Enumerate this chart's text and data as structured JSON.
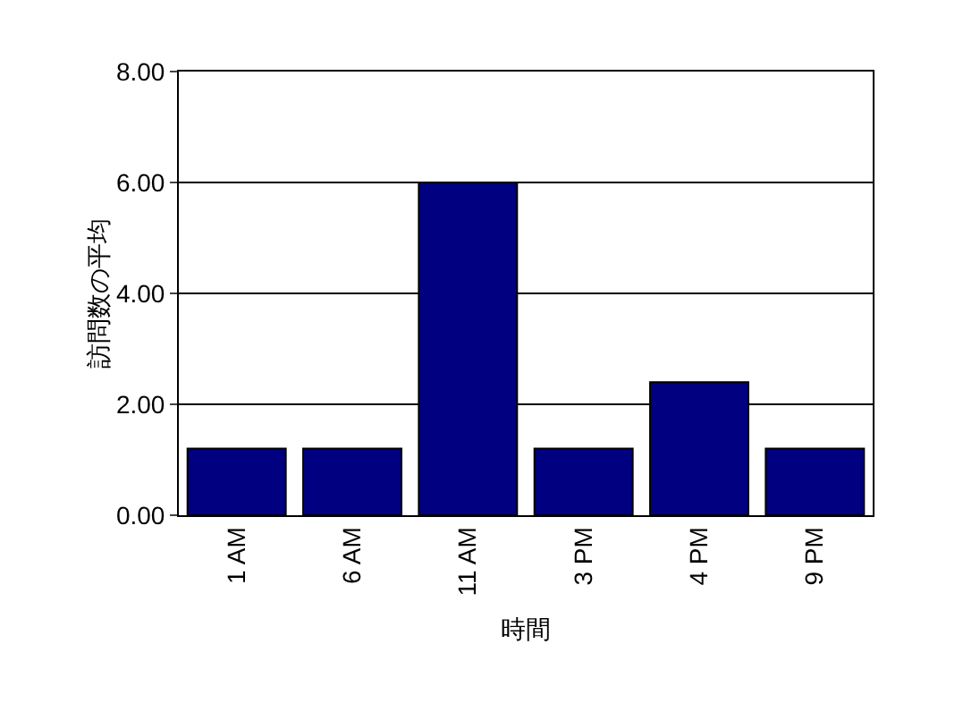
{
  "chart_data": {
    "type": "bar",
    "xlabel": "時間",
    "ylabel": "訪問数の平均",
    "categories": [
      "1 AM",
      "6 AM",
      "11 AM",
      "3 PM",
      "4 PM",
      "9 PM"
    ],
    "values": [
      1.2,
      1.2,
      6,
      1.2,
      2.4,
      1.2
    ],
    "color": "#000080",
    "ylim": [
      0,
      8
    ],
    "yticks": [
      {
        "value": 0,
        "label": "0.00"
      },
      {
        "value": 2,
        "label": "2.00"
      },
      {
        "value": 4,
        "label": "4.00"
      },
      {
        "value": 6,
        "label": "6.00"
      },
      {
        "value": 8,
        "label": "8.00"
      }
    ],
    "grid": "y",
    "legend": false
  }
}
